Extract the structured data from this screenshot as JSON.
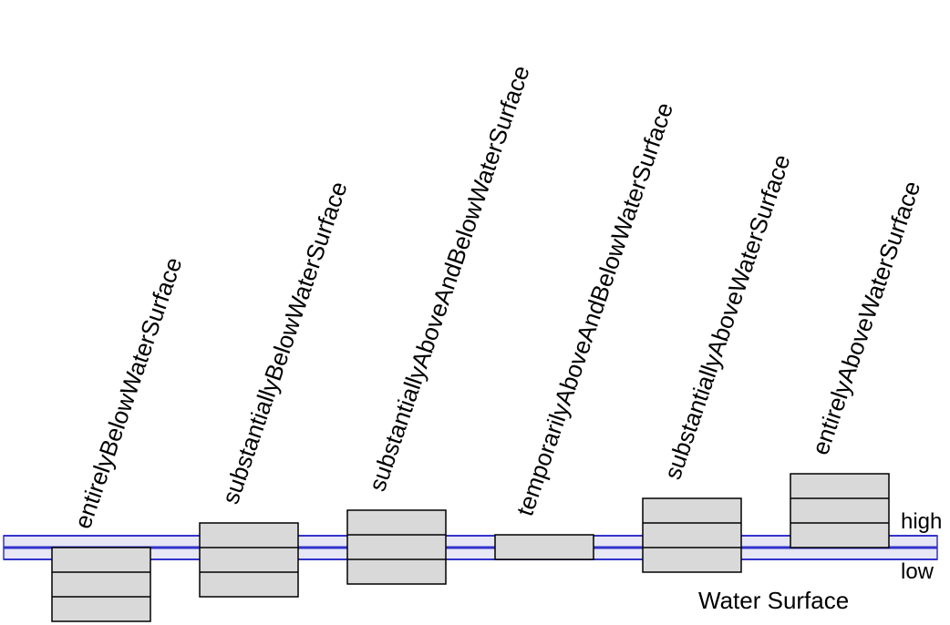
{
  "colors": {
    "water_fill": "#e6e6f5",
    "water_line": "#3333cc",
    "block_fill": "#d9d9d9",
    "outline": "#000000"
  },
  "water": {
    "title": "Water Surface",
    "high_label": "high",
    "low_label": "low"
  },
  "categories": [
    {
      "label": "entirelyBelowWaterSurface",
      "layers": 3
    },
    {
      "label": "substantiallyBelowWaterSurface",
      "layers": 3
    },
    {
      "label": "substantiallyAboveAndBelowWaterSurface",
      "layers": 3
    },
    {
      "label": "temporarilyAboveAndBelowWaterSurface",
      "layers": 1
    },
    {
      "label": "substantiallyAboveWaterSurface",
      "layers": 3
    },
    {
      "label": "entirelyAboveWaterSurface",
      "layers": 3
    }
  ]
}
